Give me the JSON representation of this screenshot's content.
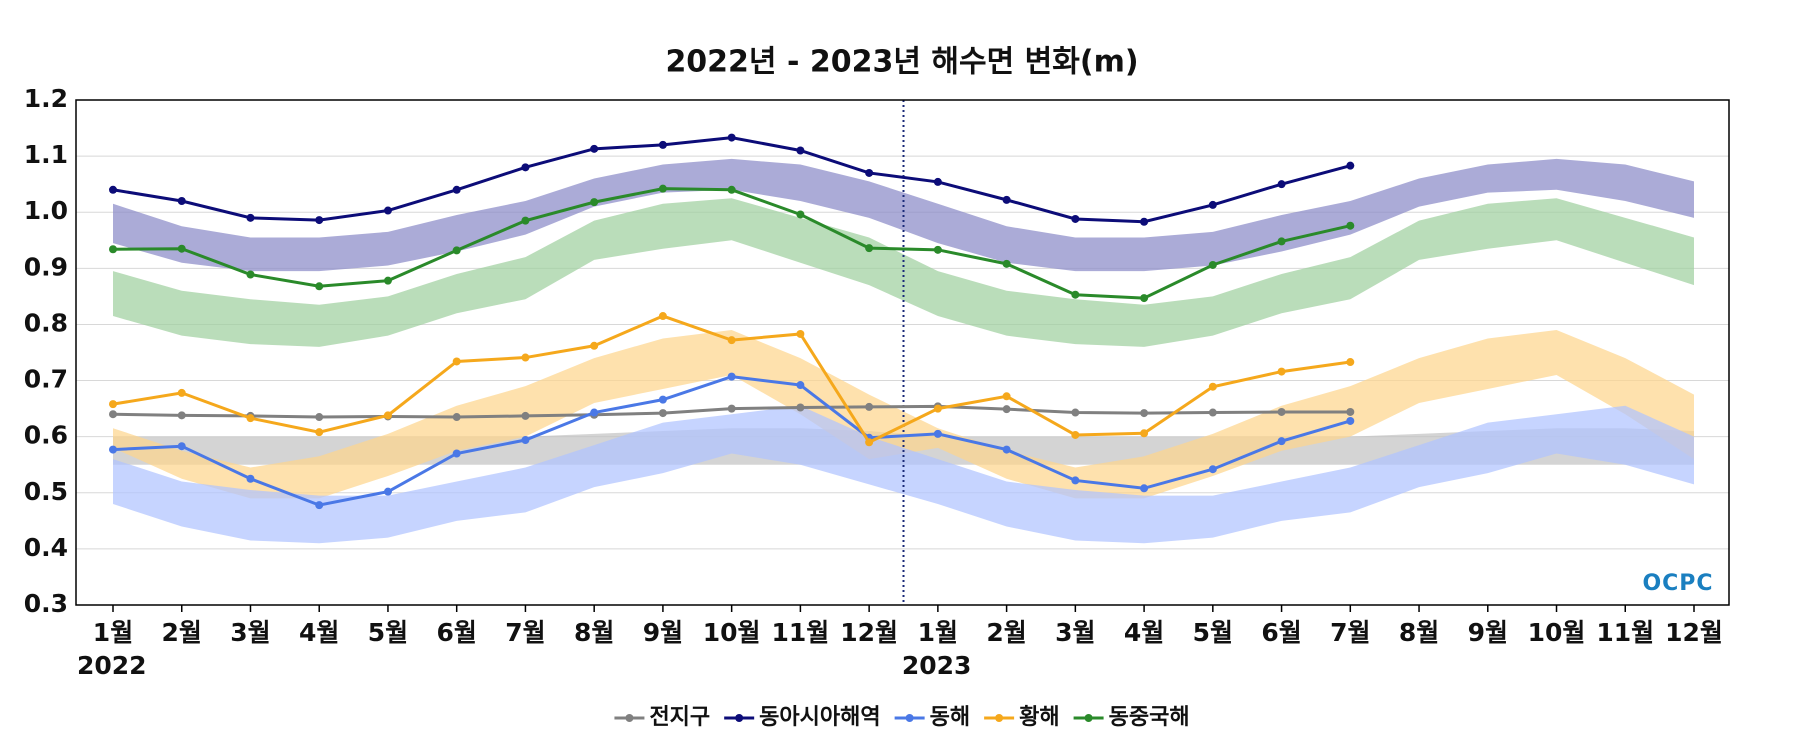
{
  "chart_data": {
    "type": "line",
    "title": "2022년 - 2023년 해수면 변화(m)",
    "categories": [
      "1월",
      "2월",
      "3월",
      "4월",
      "5월",
      "6월",
      "7월",
      "8월",
      "9월",
      "10월",
      "11월",
      "12월",
      "1월",
      "2월",
      "3월",
      "4월",
      "5월",
      "6월",
      "7월",
      "8월",
      "9월",
      "10월",
      "11월",
      "12월"
    ],
    "years": [
      "2022",
      "2023"
    ],
    "logo": "OCPC",
    "ylim": [
      0.3,
      1.2
    ],
    "yticks": [
      0.3,
      0.4,
      0.5,
      0.6,
      0.7,
      0.8,
      0.9,
      {
        "value": 1,
        "label": "1.0"
      },
      1.1,
      1.2
    ],
    "grid": true,
    "legend": "bottom",
    "bands": [
      {
        "color": "#c4c4c4",
        "upper": [
          0.6,
          0.6,
          0.6,
          0.6,
          0.6,
          0.6,
          0.6,
          0.605,
          0.61,
          0.615,
          0.615,
          0.61,
          0.6,
          0.6,
          0.6,
          0.6,
          0.6,
          0.6,
          0.6,
          0.605,
          0.61,
          0.615,
          0.615,
          0.61
        ],
        "lower": [
          0.55,
          0.55,
          0.55,
          0.55,
          0.55,
          0.55,
          0.55,
          0.55,
          0.55,
          0.55,
          0.55,
          0.55,
          0.55,
          0.55,
          0.55,
          0.55,
          0.55,
          0.55,
          0.55,
          0.55,
          0.55,
          0.55,
          0.55,
          0.55
        ]
      },
      {
        "color": "#8a8ac8",
        "upper": [
          1.015,
          0.975,
          0.955,
          0.955,
          0.965,
          0.995,
          1.02,
          1.06,
          1.085,
          1.095,
          1.085,
          1.055,
          1.015,
          0.975,
          0.955,
          0.955,
          0.965,
          0.995,
          1.02,
          1.06,
          1.085,
          1.095,
          1.085,
          1.055
        ],
        "lower": [
          0.945,
          0.91,
          0.895,
          0.895,
          0.905,
          0.93,
          0.96,
          1.01,
          1.035,
          1.04,
          1.02,
          0.99,
          0.945,
          0.91,
          0.895,
          0.895,
          0.905,
          0.93,
          0.96,
          1.01,
          1.035,
          1.04,
          1.02,
          0.99
        ]
      },
      {
        "color": "#a0d0a0",
        "upper": [
          0.895,
          0.86,
          0.845,
          0.835,
          0.85,
          0.89,
          0.92,
          0.985,
          1.015,
          1.025,
          0.99,
          0.955,
          0.895,
          0.86,
          0.845,
          0.835,
          0.85,
          0.89,
          0.92,
          0.985,
          1.015,
          1.025,
          0.99,
          0.955
        ],
        "lower": [
          0.815,
          0.78,
          0.765,
          0.76,
          0.78,
          0.82,
          0.845,
          0.915,
          0.935,
          0.95,
          0.91,
          0.87,
          0.815,
          0.78,
          0.765,
          0.76,
          0.78,
          0.82,
          0.845,
          0.915,
          0.935,
          0.95,
          0.91,
          0.87
        ]
      },
      {
        "color": "#fdd68e",
        "upper": [
          0.615,
          0.575,
          0.545,
          0.565,
          0.605,
          0.655,
          0.69,
          0.74,
          0.775,
          0.79,
          0.74,
          0.675,
          0.615,
          0.575,
          0.545,
          0.565,
          0.605,
          0.655,
          0.69,
          0.74,
          0.775,
          0.79,
          0.74,
          0.675
        ],
        "lower": [
          0.58,
          0.525,
          0.49,
          0.49,
          0.53,
          0.575,
          0.6,
          0.66,
          0.685,
          0.71,
          0.64,
          0.56,
          0.58,
          0.525,
          0.49,
          0.49,
          0.53,
          0.575,
          0.6,
          0.66,
          0.685,
          0.71,
          0.64,
          0.56
        ]
      },
      {
        "color": "#b0c4ff",
        "upper": [
          0.56,
          0.52,
          0.505,
          0.495,
          0.495,
          0.52,
          0.545,
          0.585,
          0.625,
          0.64,
          0.655,
          0.6,
          0.56,
          0.52,
          0.505,
          0.495,
          0.495,
          0.52,
          0.545,
          0.585,
          0.625,
          0.64,
          0.655,
          0.6
        ],
        "lower": [
          0.48,
          0.44,
          0.415,
          0.41,
          0.42,
          0.45,
          0.465,
          0.51,
          0.535,
          0.57,
          0.55,
          0.515,
          0.48,
          0.44,
          0.415,
          0.41,
          0.42,
          0.45,
          0.465,
          0.51,
          0.535,
          0.57,
          0.55,
          0.515
        ]
      }
    ],
    "series": [
      {
        "name": "전지구",
        "color": "#808080",
        "values": [
          0.64,
          0.638,
          0.637,
          0.635,
          0.636,
          0.635,
          0.637,
          0.639,
          0.642,
          0.65,
          0.652,
          0.653,
          0.654,
          0.649,
          0.643,
          0.642,
          0.643,
          0.644,
          0.644,
          null,
          null,
          null,
          null,
          null
        ]
      },
      {
        "name": "동아시아해역",
        "color": "#0c0c78",
        "values": [
          1.04,
          1.02,
          0.99,
          0.986,
          1.003,
          1.04,
          1.08,
          1.113,
          1.12,
          1.133,
          1.11,
          1.07,
          1.054,
          1.022,
          0.988,
          0.983,
          1.013,
          1.05,
          1.083,
          null,
          null,
          null,
          null,
          null
        ]
      },
      {
        "name": "동해",
        "color": "#4a78e6",
        "values": [
          0.577,
          0.583,
          0.525,
          0.478,
          0.502,
          0.57,
          0.594,
          0.643,
          0.666,
          0.707,
          0.692,
          0.598,
          0.605,
          0.577,
          0.522,
          0.508,
          0.542,
          0.592,
          0.628,
          null,
          null,
          null,
          null,
          null
        ]
      },
      {
        "name": "황해",
        "color": "#f5a81c",
        "values": [
          0.658,
          0.678,
          0.633,
          0.608,
          0.638,
          0.734,
          0.741,
          0.762,
          0.815,
          0.772,
          0.783,
          0.59,
          0.65,
          0.672,
          0.603,
          0.606,
          0.689,
          0.716,
          0.733,
          null,
          null,
          null,
          null,
          null
        ]
      },
      {
        "name": "동중국해",
        "color": "#2a8a2a",
        "values": [
          0.934,
          0.935,
          0.889,
          0.868,
          0.878,
          0.932,
          0.985,
          1.018,
          1.042,
          1.04,
          0.996,
          0.936,
          0.933,
          0.908,
          0.853,
          0.847,
          0.906,
          0.948,
          0.976,
          null,
          null,
          null,
          null,
          null
        ]
      }
    ]
  }
}
